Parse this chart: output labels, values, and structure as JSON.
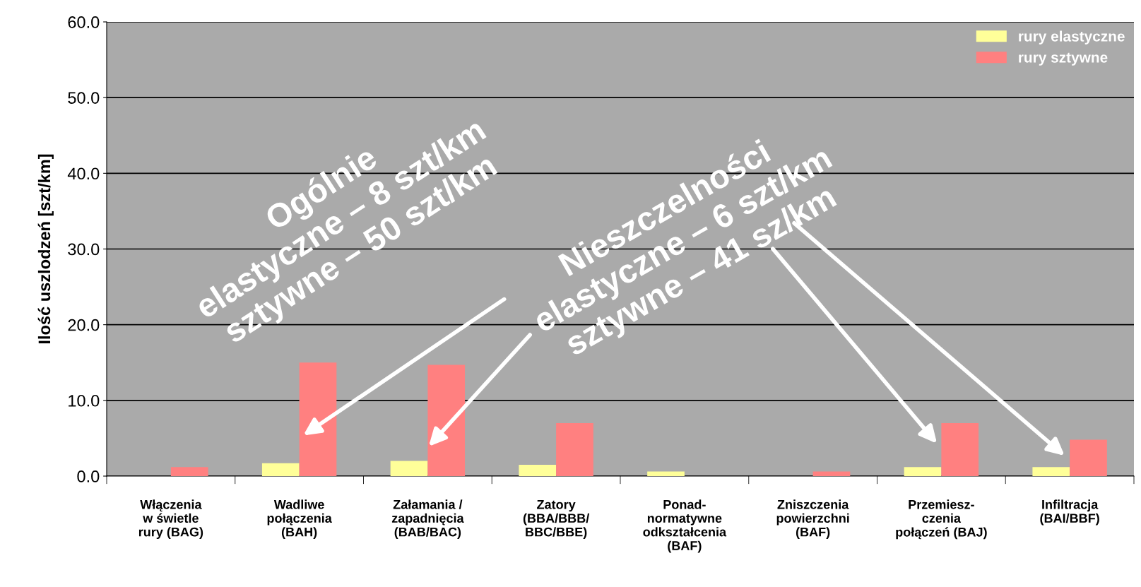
{
  "chart_data": {
    "type": "bar",
    "ylabel": "Ilość uszlodzeń [szt/km]",
    "categories": [
      "Włączenia\nw świetle\nrury (BAG)",
      "Wadliwe\npołączenia\n(BAH)",
      "Załamania /\nzapadnięcia\n(BAB/BAC)",
      "Zatory\n(BBA/BBB/\nBBC/BBE)",
      "Ponad-\nnormatywne\nodkształcenia\n(BAF)",
      "Zniszczenia\npowierzchni\n(BAF)",
      "Przemiesz-\nczenia\npołączeń (BAJ)",
      "Infiltracja\n(BAI/BBF)"
    ],
    "series": [
      {
        "name": "rury elastyczne",
        "color": "#ffff99",
        "values": [
          0,
          1.7,
          2.0,
          1.5,
          0.6,
          0,
          1.2,
          1.2
        ]
      },
      {
        "name": "rury sztywne",
        "color": "#ff8080",
        "values": [
          1.2,
          15.0,
          14.7,
          7.0,
          0,
          0.6,
          7.0,
          4.8
        ]
      }
    ],
    "ylim": [
      0,
      60
    ],
    "yticks": [
      {
        "value": 0,
        "label": "0.0"
      },
      {
        "value": 10,
        "label": "10.0"
      },
      {
        "value": 20,
        "label": "20.0"
      },
      {
        "value": 30,
        "label": "30.0"
      },
      {
        "value": 40,
        "label": "40.0"
      },
      {
        "value": 50,
        "label": "50.0"
      },
      {
        "value": 60,
        "label": "60.0"
      }
    ],
    "grid": "y",
    "legend": "top right",
    "annotations": [
      "Ogólnie\nelastyczne – 8 szt/km\nsztywne – 50 szt/km",
      "Nieszczelności\nelastyczne – 6 szt/km\nsztywne – 41 sz/km"
    ]
  }
}
